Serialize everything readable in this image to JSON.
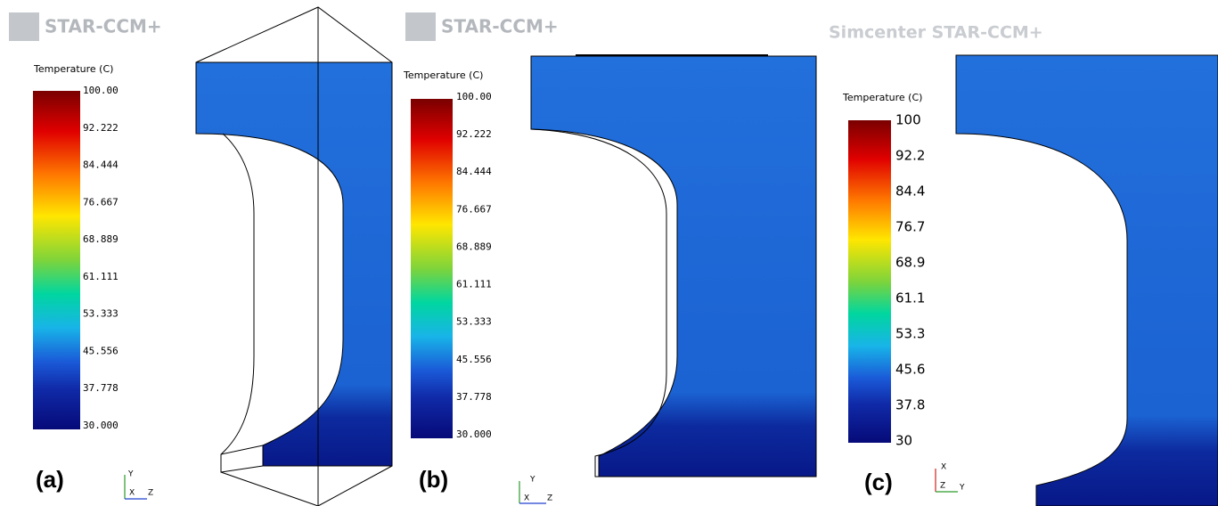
{
  "panels": [
    {
      "logo": "STAR-CCM+",
      "label": "(a)",
      "colorbar": {
        "title": "Temperature (C)",
        "ticks": [
          "100.00",
          "92.222",
          "84.444",
          "76.667",
          "68.889",
          "61.111",
          "53.333",
          "45.556",
          "37.778",
          "30.000"
        ]
      },
      "triad": [
        "Y",
        "X",
        "Z"
      ]
    },
    {
      "logo": "STAR-CCM+",
      "label": "(b)",
      "colorbar": {
        "title": "Temperature (C)",
        "ticks": [
          "100.00",
          "92.222",
          "84.444",
          "76.667",
          "68.889",
          "61.111",
          "53.333",
          "45.556",
          "37.778",
          "30.000"
        ]
      },
      "triad": [
        "Y",
        "X",
        "Z"
      ]
    },
    {
      "logo": "Simcenter STAR-CCM+",
      "label": "(c)",
      "colorbar": {
        "title": "Temperature (C)",
        "ticks": [
          "100",
          "92.2",
          "84.4",
          "76.7",
          "68.9",
          "61.1",
          "53.3",
          "45.6",
          "37.8",
          "30"
        ]
      },
      "triad": [
        "X",
        "Z",
        "Y"
      ]
    }
  ]
}
